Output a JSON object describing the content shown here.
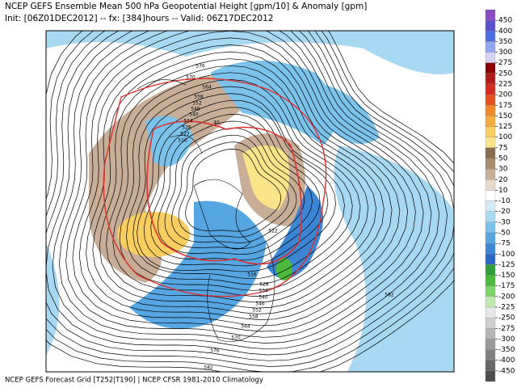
{
  "header": {
    "title": "NCEP GEFS Ensemble Mean 500 hPa Geopotential Height [gpm/10] & Anomaly [gpm]",
    "subtitle": "Init: [06Z01DEC2012] -- fx: [384]hours -- Valid: 06Z17DEC2012"
  },
  "footer": "NCEP GEFS Forecast Grid [T252|T190] | NCEP CFSR 1981-2010 Climatology",
  "map": {
    "contour_labels": [
      "576",
      "570",
      "564",
      "558",
      "552",
      "546",
      "540",
      "534",
      "528",
      "522",
      "516",
      "40",
      "522",
      "516",
      "528",
      "534",
      "540",
      "546",
      "552",
      "558",
      "564",
      "570",
      "576",
      "582",
      "582"
    ]
  },
  "colorbar": {
    "labels": [
      "450",
      "400",
      "350",
      "300",
      "275",
      "250",
      "225",
      "200",
      "175",
      "150",
      "125",
      "100",
      "75",
      "50",
      "30",
      "20",
      "10",
      "-10",
      "-20",
      "-30",
      "-50",
      "-75",
      "-100",
      "-125",
      "-150",
      "-175",
      "-200",
      "-225",
      "-250",
      "-275",
      "-300",
      "-350",
      "-400",
      "-450"
    ],
    "colors": [
      "#8a4cc2",
      "#5a4fcf",
      "#4a6fe3",
      "#8fa8f0",
      "#d9d2f5",
      "#8b0000",
      "#b51a1a",
      "#d62b1f",
      "#e6521f",
      "#f08a28",
      "#f5ac3c",
      "#f8ce60",
      "#f9e48a",
      "#8c6a4e",
      "#a88a70",
      "#c8ad97",
      "#e8d9cb",
      "#ffffff",
      "#d5ecf8",
      "#a8d8f2",
      "#7cc3ec",
      "#55a6e3",
      "#3c86d6",
      "#2d66c4",
      "#2e9e3a",
      "#4cbb3c",
      "#7fd36a",
      "#bfe8ae",
      "#e6e6e6",
      "#cfcfcf",
      "#b5b5b5",
      "#9a9a9a",
      "#808080",
      "#666666",
      "#4d4d4d"
    ]
  }
}
